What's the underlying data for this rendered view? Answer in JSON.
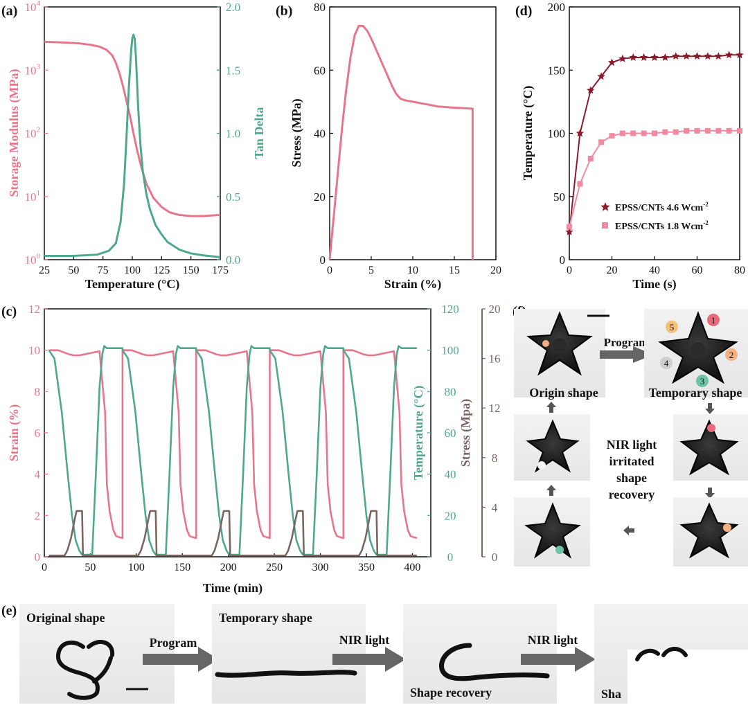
{
  "colors": {
    "pink": "#e8768a",
    "teal": "#4fa88e",
    "brown": "#7a6660",
    "darkred": "#8b1a2b",
    "lightpink": "#f08aa0",
    "arrow": "#666666",
    "ink": "#111111"
  },
  "chart_data": [
    {
      "id": "a",
      "panel_label": "(a)",
      "type": "line",
      "xlabel": "Temperature  (°C)",
      "ylabel_left": "Storage  Modulus  (MPa)",
      "ylabel_right": "Tan Delta",
      "x_ticks": [
        "25",
        "50",
        "75",
        "100",
        "125",
        "150",
        "175"
      ],
      "xlim": [
        25,
        175
      ],
      "y_left_scale": "log",
      "y_left_lim": [
        1,
        10000
      ],
      "y_left_ticks": [
        {
          "base": "10",
          "exp": "0"
        },
        {
          "base": "10",
          "exp": "1"
        },
        {
          "base": "10",
          "exp": "2"
        },
        {
          "base": "10",
          "exp": "3"
        },
        {
          "base": "10",
          "exp": "4"
        }
      ],
      "y_right_lim": [
        0,
        2.0
      ],
      "y_right_ticks": [
        "0.0",
        "0.5",
        "1.0",
        "1.5",
        "2.0"
      ],
      "series": [
        {
          "axis": "left",
          "color": "#e8768a",
          "x": [
            25,
            40,
            55,
            65,
            72,
            78,
            83,
            86,
            89,
            92,
            95,
            98,
            101,
            104,
            108,
            112,
            118,
            125,
            132,
            140,
            150,
            160,
            175
          ],
          "y": [
            2800,
            2750,
            2650,
            2500,
            2350,
            2100,
            1700,
            1300,
            900,
            560,
            330,
            190,
            100,
            55,
            28,
            16,
            9.5,
            6.8,
            5.6,
            5.1,
            4.9,
            4.9,
            5.1
          ]
        },
        {
          "axis": "right",
          "color": "#4fa88e",
          "x": [
            25,
            50,
            70,
            80,
            86,
            90,
            93,
            95,
            97,
            99,
            100,
            101,
            102,
            103,
            104,
            105,
            107,
            109,
            112,
            115,
            120,
            125,
            130,
            140,
            150,
            160,
            175
          ],
          "y": [
            0.03,
            0.03,
            0.04,
            0.07,
            0.13,
            0.3,
            0.6,
            0.95,
            1.35,
            1.65,
            1.75,
            1.78,
            1.75,
            1.62,
            1.42,
            1.2,
            0.9,
            0.7,
            0.52,
            0.4,
            0.27,
            0.2,
            0.14,
            0.08,
            0.05,
            0.035,
            0.02
          ]
        }
      ]
    },
    {
      "id": "b",
      "panel_label": "(b)",
      "type": "line",
      "xlabel": "Strain  (%)",
      "ylabel": "Stress  (MPa)",
      "x_ticks": [
        "0",
        "5",
        "10",
        "15",
        "20"
      ],
      "xlim": [
        0,
        20
      ],
      "y_ticks": [
        "0",
        "20",
        "40",
        "60",
        "80"
      ],
      "ylim": [
        0,
        80
      ],
      "series": [
        {
          "color": "#e8768a",
          "x": [
            0,
            0.5,
            1,
            1.5,
            2,
            2.5,
            3,
            3.5,
            4,
            4.5,
            5,
            5.5,
            6,
            6.5,
            7,
            7.5,
            8,
            8.5,
            9,
            10,
            11,
            12,
            13,
            14,
            15,
            16,
            17,
            17.2,
            17.2
          ],
          "y": [
            0,
            14,
            28,
            42,
            54,
            64,
            71,
            74,
            74,
            72.5,
            70,
            67,
            64,
            61,
            58,
            55,
            52.5,
            51,
            50.5,
            50,
            49.5,
            49,
            48.5,
            48.3,
            48.1,
            48,
            47.8,
            47.8,
            0
          ]
        }
      ]
    },
    {
      "id": "d",
      "panel_label": "(d)",
      "type": "line",
      "xlabel": "Time  (s)",
      "ylabel": "Temperature  (°C)",
      "x_ticks": [
        "0",
        "20",
        "40",
        "60",
        "80"
      ],
      "xlim": [
        0,
        80
      ],
      "y_ticks": [
        "0",
        "50",
        "100",
        "150",
        "200"
      ],
      "ylim": [
        0,
        200
      ],
      "legend": [
        {
          "label": "EPSS/CNTs 4.6 Wcm",
          "sup": "-2",
          "marker": "star",
          "color": "#8b1a2b"
        },
        {
          "label": "EPSS/CNTs 1.8 Wcm",
          "sup": "-2",
          "marker": "square",
          "color": "#f08aa0"
        }
      ],
      "series": [
        {
          "name": "EPSS/CNTs 4.6 Wcm-2",
          "color": "#8b1a2b",
          "marker": "star",
          "x": [
            0,
            5,
            10,
            15,
            20,
            25,
            30,
            35,
            40,
            45,
            50,
            55,
            60,
            65,
            70,
            75,
            80
          ],
          "y": [
            22,
            100,
            134,
            145,
            156,
            159,
            160,
            160,
            160,
            160,
            161,
            161,
            161,
            161,
            161,
            162,
            162
          ]
        },
        {
          "name": "EPSS/CNTs 1.8 Wcm-2",
          "color": "#f08aa0",
          "marker": "square",
          "x": [
            0,
            5,
            10,
            15,
            20,
            25,
            30,
            35,
            40,
            45,
            50,
            55,
            60,
            65,
            70,
            75,
            80
          ],
          "y": [
            26,
            60,
            80,
            93,
            98,
            100,
            100,
            100,
            100,
            101,
            101,
            102,
            102,
            102,
            102,
            102,
            102
          ]
        }
      ]
    },
    {
      "id": "c",
      "panel_label": "(c)",
      "type": "line",
      "xlabel": "Time  (min)",
      "ylabel_left": "Strain  (%)",
      "ylabel_right1": "Temperature  (°C)",
      "ylabel_right2": "Stress  (Mpa)",
      "x_ticks": [
        "0",
        "50",
        "100",
        "150",
        "200",
        "250",
        "300",
        "350",
        "400"
      ],
      "xlim": [
        0,
        420
      ],
      "y_left_ticks": [
        "0",
        "2",
        "4",
        "6",
        "8",
        "10",
        "12"
      ],
      "y_left_lim": [
        0,
        12
      ],
      "y_right1_ticks": [
        "0",
        "20",
        "40",
        "60",
        "80",
        "100",
        "120"
      ],
      "y_right1_lim": [
        0,
        120
      ],
      "y_right2_ticks": [
        "0",
        "4",
        "8",
        "12",
        "16",
        "20"
      ],
      "y_right2_lim": [
        0,
        20
      ],
      "cycle_starts": [
        5,
        85,
        165,
        245,
        325
      ],
      "series": [
        {
          "name": "strain",
          "axis": "left",
          "color": "#e8768a",
          "x_rel": [
            0,
            10,
            22,
            27,
            33,
            55,
            61,
            63,
            66,
            70,
            73,
            80
          ],
          "y": [
            10.0,
            10.0,
            9.8,
            9.75,
            9.75,
            9.95,
            7.0,
            3.5,
            2.2,
            1.3,
            1.0,
            0.9
          ]
        },
        {
          "name": "temperature",
          "axis": "right1",
          "color": "#4fa88e",
          "x_rel": [
            0,
            6,
            14,
            20,
            25,
            29,
            33,
            36,
            41,
            47,
            51,
            55,
            58,
            60,
            63,
            80
          ],
          "y": [
            100,
            96,
            70,
            42,
            20,
            8,
            3,
            1,
            1,
            1,
            40,
            82,
            98,
            102,
            101,
            101
          ]
        },
        {
          "name": "stress",
          "axis": "right2",
          "color": "#7a6660",
          "x_rel": [
            0,
            17,
            20,
            24,
            28,
            30,
            34,
            36,
            37,
            50,
            80
          ],
          "y": [
            0.1,
            0.1,
            0.5,
            1.5,
            3.0,
            3.7,
            3.7,
            3.7,
            0.1,
            0.1,
            0.1
          ]
        }
      ]
    }
  ],
  "panel_f": {
    "label": "(f)",
    "states": {
      "origin": "Origin shape",
      "temporary": "Temporary shape"
    },
    "arrow_program": "Program",
    "recovery_lines": [
      "NIR light",
      "irritated",
      "shape",
      "recovery"
    ],
    "numbers": [
      "1",
      "2",
      "3",
      "4",
      "5"
    ]
  },
  "panel_e": {
    "label": "(e)",
    "captions": [
      "Original shape",
      "Temporary shape",
      "Shape recovery",
      "Sha"
    ],
    "arrows": [
      "Program",
      "NIR light",
      "NIR light"
    ]
  }
}
